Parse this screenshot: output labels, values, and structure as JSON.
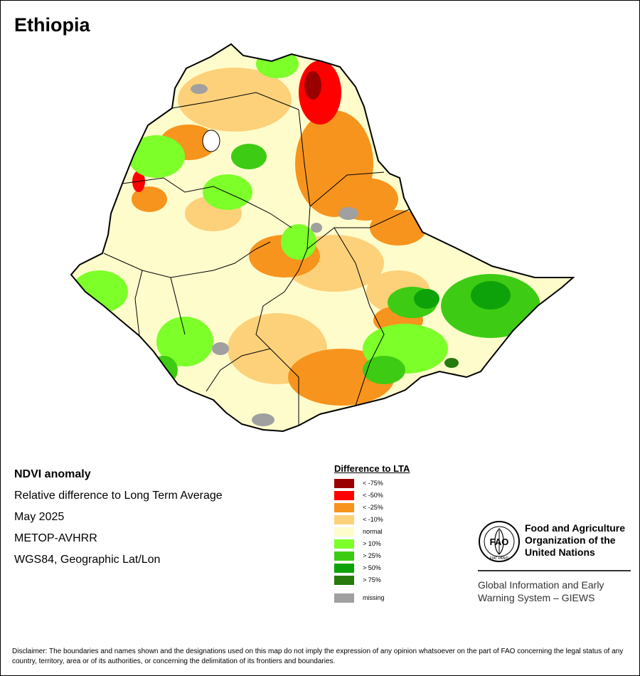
{
  "header": {
    "title": "Ethiopia"
  },
  "info": {
    "product": "NDVI anomaly",
    "description": "Relative difference to Long Term Average",
    "period": "May 2025",
    "sensor": "METOP-AVHRR",
    "projection": "WGS84, Geographic Lat/Lon"
  },
  "legend": {
    "title": "Difference to LTA",
    "items": [
      {
        "label": "< -75%",
        "color": "#9b0000"
      },
      {
        "label": "< -50%",
        "color": "#ff0000"
      },
      {
        "label": "< -25%",
        "color": "#f7941d"
      },
      {
        "label": "< -10%",
        "color": "#fdd17a"
      },
      {
        "label": "normal",
        "color": "#fffccc"
      },
      {
        "label": "> 10%",
        "color": "#7dff2a"
      },
      {
        "label": "> 25%",
        "color": "#3dcc13"
      },
      {
        "label": "> 50%",
        "color": "#0ea20a"
      },
      {
        "label": "> 75%",
        "color": "#267a0e"
      }
    ],
    "missing": {
      "label": "missing",
      "color": "#a0a0a0"
    }
  },
  "logo": {
    "org_lines": [
      "Food and Agriculture",
      "Organization of the",
      "United Nations"
    ],
    "logo_text": "FAO",
    "logo_motto": "FIAT PANIS"
  },
  "giews": {
    "lines": [
      "Global Information and Early",
      "Warning System – GIEWS"
    ]
  },
  "disclaimer": "Disclaimer: The boundaries and names shown and the designations used on this map do not imply the expression of any opinion whatsoever on the part of FAO concerning the legal status of any country, territory, area or of its authorities, or concerning the delimitation of its frontiers and boundaries."
}
